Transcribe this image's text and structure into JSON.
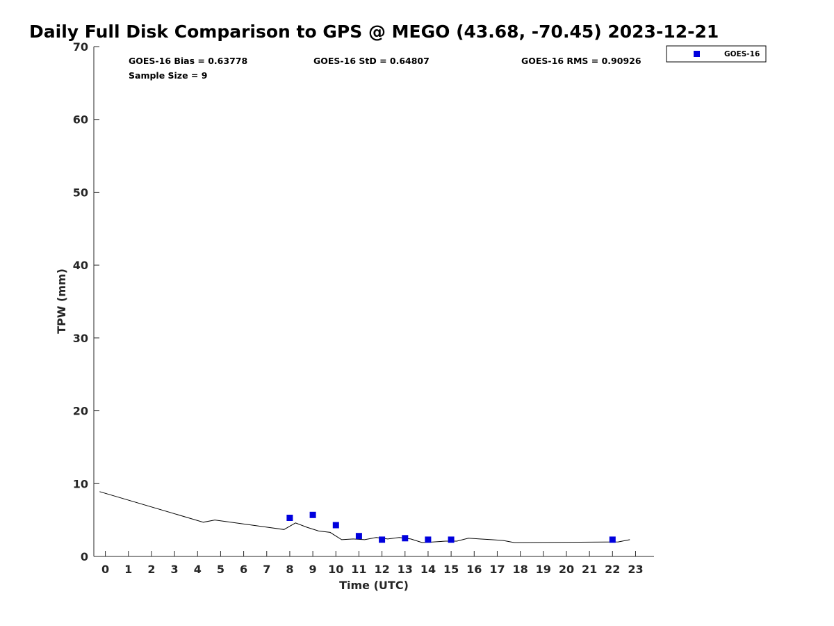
{
  "chart_data": {
    "type": "scatter",
    "title": "Daily Full Disk Comparison to GPS @ MEGO (43.68, -70.45) 2023-12-21",
    "xlabel": "Time (UTC)",
    "ylabel": "TPW (mm)",
    "xlim": [
      -0.5,
      23.8
    ],
    "ylim": [
      0,
      70
    ],
    "xticks": [
      0,
      1,
      2,
      3,
      4,
      5,
      6,
      7,
      8,
      9,
      10,
      11,
      12,
      13,
      14,
      15,
      16,
      17,
      18,
      19,
      20,
      21,
      22,
      23
    ],
    "yticks": [
      0,
      10,
      20,
      30,
      40,
      50,
      60,
      70
    ],
    "grid": false,
    "legend_position": "top-right",
    "stats": {
      "bias": "GOES-16 Bias = 0.63778",
      "std": "GOES-16 StD = 0.64807",
      "rms": "GOES-16 RMS = 0.90926",
      "sample": "Sample Size = 9"
    },
    "series": [
      {
        "name": "GOES-16",
        "kind": "scatter",
        "marker": "square",
        "color": "#0000dd",
        "x": [
          8,
          9,
          10,
          11,
          12,
          13,
          14,
          15,
          22
        ],
        "y": [
          5.3,
          5.7,
          4.3,
          2.8,
          2.3,
          2.5,
          2.3,
          2.3,
          2.3
        ]
      },
      {
        "kind": "line",
        "color": "#000000",
        "x": [
          -0.25,
          4.25,
          4.75,
          7.75,
          8.25,
          8.75,
          9.25,
          9.75,
          10.25,
          10.75,
          11.25,
          11.75,
          12.25,
          12.75,
          13.25,
          13.75,
          14.25,
          14.75,
          15.25,
          15.75,
          16.25,
          16.75,
          17.25,
          17.75,
          22.25,
          22.75
        ],
        "y": [
          8.9,
          4.7,
          5.0,
          3.7,
          4.6,
          4.0,
          3.5,
          3.3,
          2.3,
          2.4,
          2.3,
          2.6,
          2.4,
          2.6,
          2.4,
          1.9,
          2.0,
          2.1,
          2.1,
          2.5,
          2.4,
          2.3,
          2.2,
          1.9,
          2.0,
          2.3
        ]
      }
    ]
  }
}
